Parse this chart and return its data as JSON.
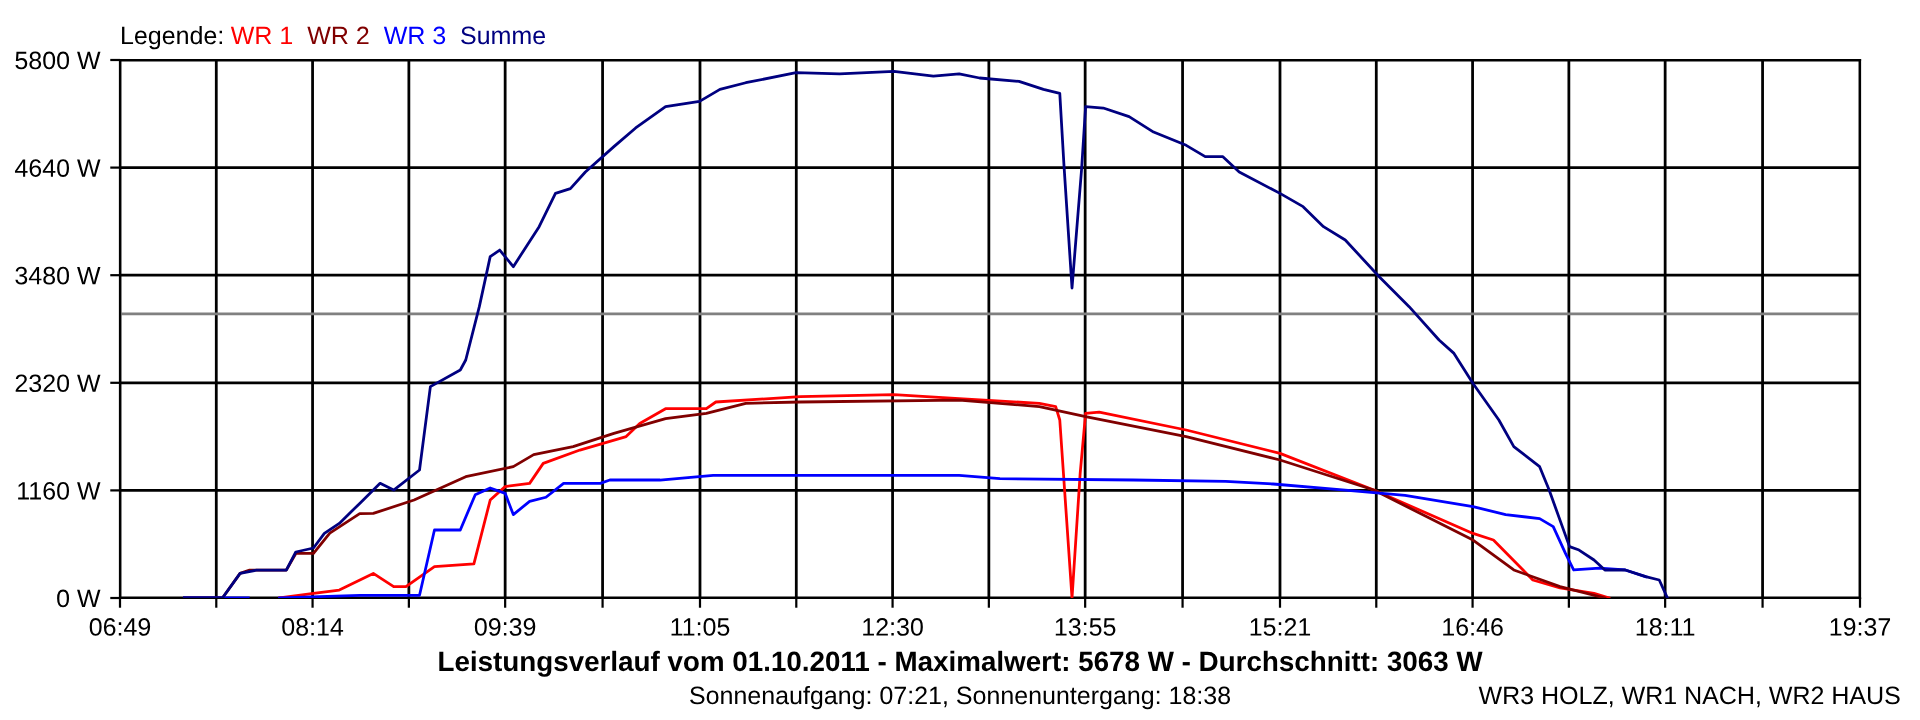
{
  "chart_data": {
    "type": "line",
    "title": "Leistungsverlauf vom 01.10.2011 - Maximalwert: 5678 W - Durchschnitt: 3063 W",
    "subtitle": "Sonnenaufgang: 07:21, Sonnenuntergang: 18:38",
    "legend_title": "Legende:",
    "annotations": [
      "WR3 HOLZ, WR1 NACH, WR2 HAUS"
    ],
    "xlim": [
      6.8167,
      19.6167
    ],
    "xticks": [
      {
        "value": 6.8167,
        "label": "06:49"
      },
      {
        "value": 7.525,
        "label": null
      },
      {
        "value": 8.2333,
        "label": "08:14"
      },
      {
        "value": 8.9417,
        "label": null
      },
      {
        "value": 9.65,
        "label": "09:39"
      },
      {
        "value": 10.3667,
        "label": null
      },
      {
        "value": 11.0833,
        "label": "11:05"
      },
      {
        "value": 11.7917,
        "label": null
      },
      {
        "value": 12.5,
        "label": "12:30"
      },
      {
        "value": 13.2083,
        "label": null
      },
      {
        "value": 13.9167,
        "label": "13:55"
      },
      {
        "value": 14.6333,
        "label": null
      },
      {
        "value": 15.35,
        "label": "15:21"
      },
      {
        "value": 16.0583,
        "label": null
      },
      {
        "value": 16.7667,
        "label": "16:46"
      },
      {
        "value": 17.475,
        "label": null
      },
      {
        "value": 18.1833,
        "label": "18:11"
      },
      {
        "value": 18.9,
        "label": null
      },
      {
        "value": 19.6167,
        "label": "19:37"
      }
    ],
    "ylim": [
      0,
      5800
    ],
    "yticks": [
      {
        "value": 0,
        "label": "0 W"
      },
      {
        "value": 1160,
        "label": "1160 W"
      },
      {
        "value": 2320,
        "label": "2320 W"
      },
      {
        "value": 3480,
        "label": "3480 W"
      },
      {
        "value": 4640,
        "label": "4640 W"
      },
      {
        "value": 5800,
        "label": "5800 W"
      }
    ],
    "grid": true,
    "legend": "top left",
    "ref_lines": [
      {
        "axis": "y",
        "value": 3063,
        "color": "#808080"
      }
    ],
    "series": [
      {
        "name": "WR 1",
        "color": "#ff0000",
        "x": [
          7.99,
          8.24,
          8.43,
          8.68,
          8.83,
          8.92,
          9.13,
          9.42,
          9.54,
          9.65,
          9.83,
          9.93,
          10.2,
          10.54,
          10.64,
          10.83,
          11.13,
          11.2,
          11.82,
          12.51,
          12.99,
          13.58,
          13.7,
          13.73,
          13.82,
          13.88,
          13.92,
          14.02,
          14.66,
          15.35,
          16.04,
          16.77,
          16.92,
          17.21,
          17.41,
          17.66,
          17.77
        ],
        "values": [
          0,
          50,
          86,
          265,
          123,
          123,
          338,
          367,
          1056,
          1201,
          1236,
          1451,
          1595,
          1740,
          1882,
          2041,
          2041,
          2113,
          2171,
          2192,
          2150,
          2098,
          2063,
          1919,
          0,
          1343,
          1990,
          2005,
          1811,
          1559,
          1164,
          696,
          625,
          194,
          108,
          50,
          0
        ]
      },
      {
        "name": "WR 2",
        "color": "#800000",
        "x": [
          7.29,
          7.57,
          7.7,
          7.77,
          8.04,
          8.11,
          8.24,
          8.36,
          8.58,
          8.68,
          8.98,
          9.36,
          9.71,
          9.86,
          10.15,
          10.45,
          10.83,
          11.13,
          11.42,
          11.82,
          12.99,
          13.58,
          13.92,
          14.66,
          15.35,
          16.04,
          16.77,
          17.07,
          17.41,
          17.74
        ],
        "values": [
          0,
          0,
          265,
          300,
          300,
          480,
          480,
          700,
          910,
          912,
          1056,
          1308,
          1416,
          1546,
          1632,
          1774,
          1934,
          1990,
          2098,
          2113,
          2134,
          2063,
          1955,
          1740,
          1488,
          1164,
          625,
          302,
          123,
          0
        ]
      },
      {
        "name": "WR 3",
        "color": "#0000ff",
        "x": [
          7.29,
          7.76,
          7.77,
          7.99,
          8.58,
          9.02,
          9.13,
          9.32,
          9.43,
          9.54,
          9.65,
          9.71,
          9.83,
          9.95,
          10.08,
          10.35,
          10.42,
          10.79,
          11.18,
          12.99,
          13.29,
          14.27,
          14.95,
          15.3,
          15.83,
          16.27,
          16.77,
          17.01,
          17.26,
          17.36,
          17.45,
          17.51,
          17.7,
          17.89,
          18.04
        ],
        "values": [
          0,
          0,
          null,
          0,
          29,
          29,
          733,
          733,
          1114,
          1186,
          1128,
          899,
          1042,
          1086,
          1236,
          1236,
          1272,
          1272,
          1322,
          1322,
          1287,
          1272,
          1258,
          1229,
          1164,
          1106,
          985,
          899,
          856,
          770,
          481,
          302,
          323,
          302,
          230
        ]
      },
      {
        "name": "Summe",
        "color": "#000080",
        "x": [
          7.29,
          7.57,
          7.7,
          7.82,
          8.04,
          8.11,
          8.24,
          8.32,
          8.43,
          8.58,
          8.73,
          8.83,
          9.02,
          9.1,
          9.32,
          9.36,
          9.46,
          9.54,
          9.61,
          9.71,
          9.9,
          10.02,
          10.13,
          10.24,
          10.45,
          10.61,
          10.83,
          11.08,
          11.23,
          11.42,
          11.79,
          12.11,
          12.51,
          12.8,
          12.99,
          13.14,
          13.43,
          13.61,
          13.73,
          13.76,
          13.82,
          13.89,
          13.92,
          14.05,
          14.24,
          14.42,
          14.66,
          14.8,
          14.93,
          15.05,
          15.35,
          15.52,
          15.67,
          15.83,
          16.08,
          16.3,
          16.52,
          16.63,
          16.77,
          16.96,
          17.07,
          17.26,
          17.33,
          17.48,
          17.55,
          17.66,
          17.74,
          17.89,
          18.04,
          18.14,
          18.2
        ],
        "values": [
          0,
          0,
          265,
          300,
          300,
          496,
          539,
          696,
          804,
          1020,
          1236,
          1164,
          1380,
          2279,
          2458,
          2566,
          3141,
          3680,
          3751,
          3572,
          4003,
          4362,
          4413,
          4592,
          4866,
          5067,
          5297,
          5354,
          5483,
          5555,
          5663,
          5650,
          5678,
          5627,
          5650,
          5606,
          5569,
          5483,
          5440,
          4685,
          3342,
          4614,
          5297,
          5282,
          5189,
          5023,
          4880,
          4758,
          4758,
          4592,
          4362,
          4219,
          4003,
          3859,
          3464,
          3141,
          2781,
          2637,
          2313,
          1919,
          1632,
          1416,
          1164,
          554,
          517,
          410,
          302,
          302,
          230,
          194,
          0
        ]
      }
    ]
  }
}
